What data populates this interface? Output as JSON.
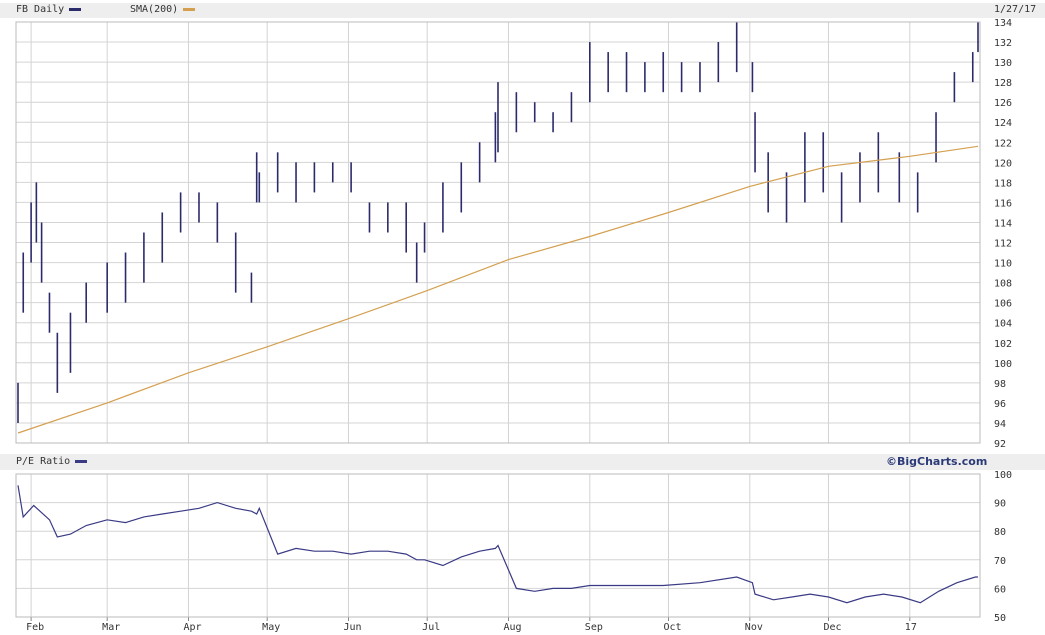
{
  "header": {
    "symbol_label": "FB Daily",
    "sma_label": "SMA(200)",
    "date": "1/27/17",
    "lower_label": "P/E Ratio",
    "credit": "©BigCharts.com"
  },
  "colors": {
    "price": "#2b2b6b",
    "sma": "#d4a050",
    "pe": "#3a3a85",
    "grid": "#d4d4d4"
  },
  "chart_data": [
    {
      "type": "bar",
      "subtype": "ohlc-range",
      "title": "FB Daily",
      "ylim": [
        92,
        134
      ],
      "yticks": [
        92,
        94,
        96,
        98,
        100,
        102,
        104,
        106,
        108,
        110,
        112,
        114,
        116,
        118,
        120,
        122,
        124,
        126,
        128,
        130,
        132,
        134
      ],
      "xticks": [
        "Feb",
        "Mar",
        "Apr",
        "May",
        "Jun",
        "Jul",
        "Aug",
        "Sep",
        "Oct",
        "Nov",
        "Dec",
        "17"
      ],
      "x_range": [
        "2016-01-27",
        "2017-01-27"
      ],
      "series": [
        {
          "name": "FB Daily",
          "x": [
            "2016-01-27",
            "2016-01-29",
            "2016-02-01",
            "2016-02-03",
            "2016-02-05",
            "2016-02-08",
            "2016-02-11",
            "2016-02-16",
            "2016-02-22",
            "2016-03-01",
            "2016-03-08",
            "2016-03-15",
            "2016-03-22",
            "2016-03-29",
            "2016-04-05",
            "2016-04-12",
            "2016-04-19",
            "2016-04-25",
            "2016-04-27",
            "2016-04-28",
            "2016-05-05",
            "2016-05-12",
            "2016-05-19",
            "2016-05-26",
            "2016-06-02",
            "2016-06-09",
            "2016-06-16",
            "2016-06-23",
            "2016-06-27",
            "2016-06-30",
            "2016-07-07",
            "2016-07-14",
            "2016-07-21",
            "2016-07-27",
            "2016-07-28",
            "2016-08-04",
            "2016-08-11",
            "2016-08-18",
            "2016-08-25",
            "2016-09-01",
            "2016-09-08",
            "2016-09-15",
            "2016-09-22",
            "2016-09-29",
            "2016-10-06",
            "2016-10-13",
            "2016-10-20",
            "2016-10-27",
            "2016-11-02",
            "2016-11-03",
            "2016-11-08",
            "2016-11-15",
            "2016-11-22",
            "2016-11-29",
            "2016-12-06",
            "2016-12-13",
            "2016-12-20",
            "2016-12-28",
            "2017-01-04",
            "2017-01-11",
            "2017-01-18",
            "2017-01-25",
            "2017-01-27"
          ],
          "low": [
            94,
            105,
            110,
            112,
            108,
            103,
            97,
            99,
            104,
            105,
            106,
            108,
            110,
            113,
            114,
            112,
            107,
            106,
            116,
            116,
            117,
            116,
            117,
            118,
            117,
            113,
            113,
            111,
            108,
            111,
            113,
            115,
            118,
            120,
            121,
            123,
            124,
            123,
            124,
            126,
            127,
            127,
            127,
            127,
            127,
            127,
            128,
            129,
            127,
            119,
            115,
            114,
            116,
            117,
            114,
            116,
            117,
            116,
            115,
            120,
            126,
            128,
            131
          ],
          "high": [
            98,
            111,
            116,
            118,
            114,
            107,
            103,
            105,
            108,
            110,
            111,
            113,
            115,
            117,
            117,
            116,
            113,
            109,
            121,
            119,
            121,
            120,
            120,
            120,
            120,
            116,
            116,
            116,
            112,
            114,
            118,
            120,
            122,
            125,
            128,
            127,
            126,
            125,
            127,
            132,
            131,
            131,
            130,
            131,
            130,
            130,
            132,
            134,
            130,
            125,
            121,
            119,
            123,
            123,
            119,
            121,
            123,
            121,
            119,
            125,
            129,
            131,
            134
          ]
        },
        {
          "name": "SMA(200)",
          "type": "line",
          "x": [
            "2016-01-27",
            "2016-03-01",
            "2016-04-01",
            "2016-05-01",
            "2016-06-01",
            "2016-07-01",
            "2016-08-01",
            "2016-09-01",
            "2016-10-01",
            "2016-11-01",
            "2016-12-01",
            "2017-01-01",
            "2017-01-27"
          ],
          "values": [
            93.0,
            96.0,
            99.0,
            101.6,
            104.4,
            107.2,
            110.3,
            112.6,
            115.0,
            117.6,
            119.6,
            120.6,
            121.6
          ]
        }
      ]
    },
    {
      "type": "line",
      "title": "P/E Ratio",
      "ylim": [
        50,
        100
      ],
      "yticks": [
        50,
        60,
        70,
        80,
        90,
        100
      ],
      "xticks": [
        "Feb",
        "Mar",
        "Apr",
        "May",
        "Jun",
        "Jul",
        "Aug",
        "Sep",
        "Oct",
        "Nov",
        "Dec",
        "17"
      ],
      "x_range": [
        "2016-01-27",
        "2017-01-27"
      ],
      "series": [
        {
          "name": "P/E Ratio",
          "x": [
            "2016-01-27",
            "2016-01-29",
            "2016-02-02",
            "2016-02-08",
            "2016-02-11",
            "2016-02-16",
            "2016-02-22",
            "2016-03-01",
            "2016-03-08",
            "2016-03-15",
            "2016-03-22",
            "2016-03-29",
            "2016-04-05",
            "2016-04-12",
            "2016-04-19",
            "2016-04-25",
            "2016-04-27",
            "2016-04-28",
            "2016-05-05",
            "2016-05-12",
            "2016-05-19",
            "2016-05-26",
            "2016-06-02",
            "2016-06-09",
            "2016-06-16",
            "2016-06-23",
            "2016-06-27",
            "2016-06-30",
            "2016-07-07",
            "2016-07-14",
            "2016-07-21",
            "2016-07-27",
            "2016-07-28",
            "2016-08-04",
            "2016-08-11",
            "2016-08-18",
            "2016-08-25",
            "2016-09-01",
            "2016-09-15",
            "2016-09-29",
            "2016-10-13",
            "2016-10-27",
            "2016-11-02",
            "2016-11-03",
            "2016-11-10",
            "2016-11-17",
            "2016-11-24",
            "2016-12-01",
            "2016-12-08",
            "2016-12-15",
            "2016-12-22",
            "2016-12-29",
            "2017-01-05",
            "2017-01-12",
            "2017-01-19",
            "2017-01-26",
            "2017-01-27"
          ],
          "values": [
            96,
            85,
            89,
            84,
            78,
            79,
            82,
            84,
            83,
            85,
            86,
            87,
            88,
            90,
            88,
            87,
            86,
            88,
            72,
            74,
            73,
            73,
            72,
            73,
            73,
            72,
            70,
            70,
            68,
            71,
            73,
            74,
            75,
            60,
            59,
            60,
            60,
            61,
            61,
            61,
            62,
            64,
            62,
            58,
            56,
            57,
            58,
            57,
            55,
            57,
            58,
            57,
            55,
            59,
            62,
            64,
            64
          ]
        }
      ]
    }
  ]
}
